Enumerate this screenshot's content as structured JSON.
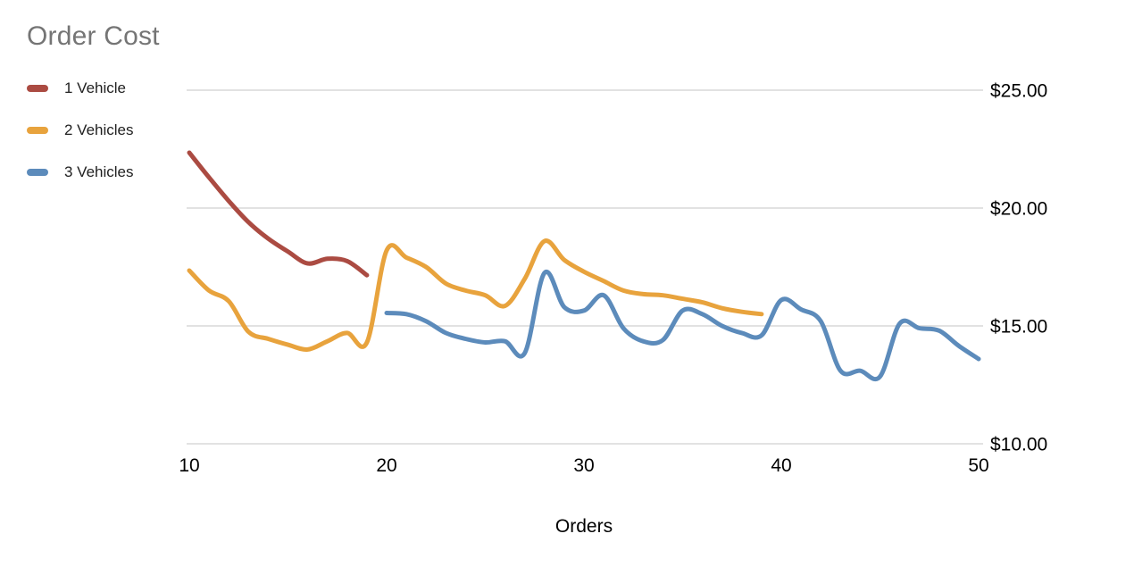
{
  "title": "Order Cost",
  "colors": {
    "title_text": "#757575",
    "axis_text": "#000000",
    "legend_text": "#212121",
    "gridline": "#d9d9d9",
    "background": "#ffffff",
    "series_1_vehicle": "#ab4b42",
    "series_2_vehicles": "#e8a33d",
    "series_3_vehicles": "#5c8bbb"
  },
  "legend": {
    "position": "top-left",
    "items": [
      {
        "label": "1 Vehicle",
        "color": "#ab4b42"
      },
      {
        "label": "2 Vehicles",
        "color": "#e8a33d"
      },
      {
        "label": "3 Vehicles",
        "color": "#5c8bbb"
      }
    ]
  },
  "chart_data": {
    "type": "line",
    "title": "Order Cost",
    "xlabel": "Orders",
    "ylabel": "",
    "xlim": [
      10,
      50
    ],
    "ylim": [
      10,
      25
    ],
    "grid": "horizontal",
    "line_smoothing": true,
    "line_width": 5,
    "legend_position": "top-left",
    "x_ticks": [
      {
        "value": 10,
        "label": "10"
      },
      {
        "value": 20,
        "label": "20"
      },
      {
        "value": 30,
        "label": "30"
      },
      {
        "value": 40,
        "label": "40"
      },
      {
        "value": 50,
        "label": "50"
      }
    ],
    "y_ticks": [
      {
        "value": 25,
        "label": "$25.00"
      },
      {
        "value": 20,
        "label": "$20.00"
      },
      {
        "value": 15,
        "label": "$15.00"
      },
      {
        "value": 10,
        "label": "$10.00"
      }
    ],
    "series": [
      {
        "name": "1 Vehicle",
        "color": "#ab4b42",
        "x": [
          10,
          11,
          12,
          13,
          14,
          15,
          16,
          17,
          18,
          19
        ],
        "values": [
          22.35,
          21.3,
          20.3,
          19.4,
          18.7,
          18.15,
          17.65,
          17.85,
          17.75,
          17.15
        ]
      },
      {
        "name": "2 Vehicles",
        "color": "#e8a33d",
        "x": [
          10,
          11,
          12,
          13,
          14,
          15,
          16,
          17,
          18,
          19,
          20,
          21,
          22,
          23,
          24,
          25,
          26,
          27,
          28,
          29,
          30,
          31,
          32,
          33,
          34,
          35,
          36,
          37,
          38,
          39
        ],
        "values": [
          17.35,
          16.5,
          16.05,
          14.75,
          14.45,
          14.2,
          14.0,
          14.35,
          14.7,
          14.3,
          18.2,
          17.9,
          17.5,
          16.8,
          16.5,
          16.3,
          15.85,
          17.0,
          18.6,
          17.8,
          17.3,
          16.9,
          16.5,
          16.35,
          16.3,
          16.15,
          16.0,
          15.75,
          15.6,
          15.5
        ]
      },
      {
        "name": "3 Vehicles",
        "color": "#5c8bbb",
        "x": [
          20,
          21,
          22,
          23,
          24,
          25,
          26,
          27,
          28,
          29,
          30,
          31,
          32,
          33,
          34,
          35,
          36,
          37,
          38,
          39,
          40,
          41,
          42,
          43,
          44,
          45,
          46,
          47,
          48,
          49,
          50
        ],
        "values": [
          15.55,
          15.5,
          15.2,
          14.7,
          14.45,
          14.3,
          14.35,
          13.85,
          17.25,
          15.8,
          15.65,
          16.3,
          14.9,
          14.35,
          14.4,
          15.65,
          15.5,
          15.0,
          14.7,
          14.6,
          16.1,
          15.7,
          15.2,
          13.1,
          13.1,
          12.85,
          15.1,
          14.9,
          14.8,
          14.15,
          13.6
        ]
      }
    ]
  }
}
